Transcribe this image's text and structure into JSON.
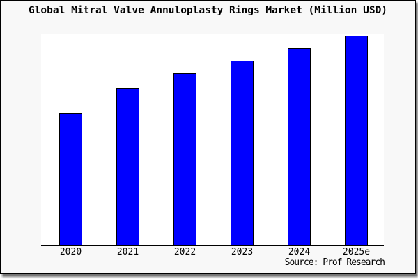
{
  "chart_data": {
    "type": "bar",
    "title": "Global Mitral Valve Annuloplasty Rings Market (Million USD)",
    "categories": [
      "2020",
      "2021",
      "2022",
      "2023",
      "2024",
      "2025e"
    ],
    "values": [
      63,
      75,
      82,
      88,
      94,
      100
    ],
    "series_note_units": "relative height (no y-axis scale shown in chart)",
    "ylim": [
      0,
      100
    ],
    "xlabel": "",
    "ylabel": "",
    "y_axis_visible": false,
    "gridlines": false,
    "legend": "none",
    "source": "Source: Prof Research",
    "colors": {
      "bar_fill": "#0000ff",
      "bar_border": "#000000",
      "axis": "#000000",
      "frame_background": "#f8f8f8",
      "plot_background": "#ffffff",
      "text": "#000000"
    }
  }
}
